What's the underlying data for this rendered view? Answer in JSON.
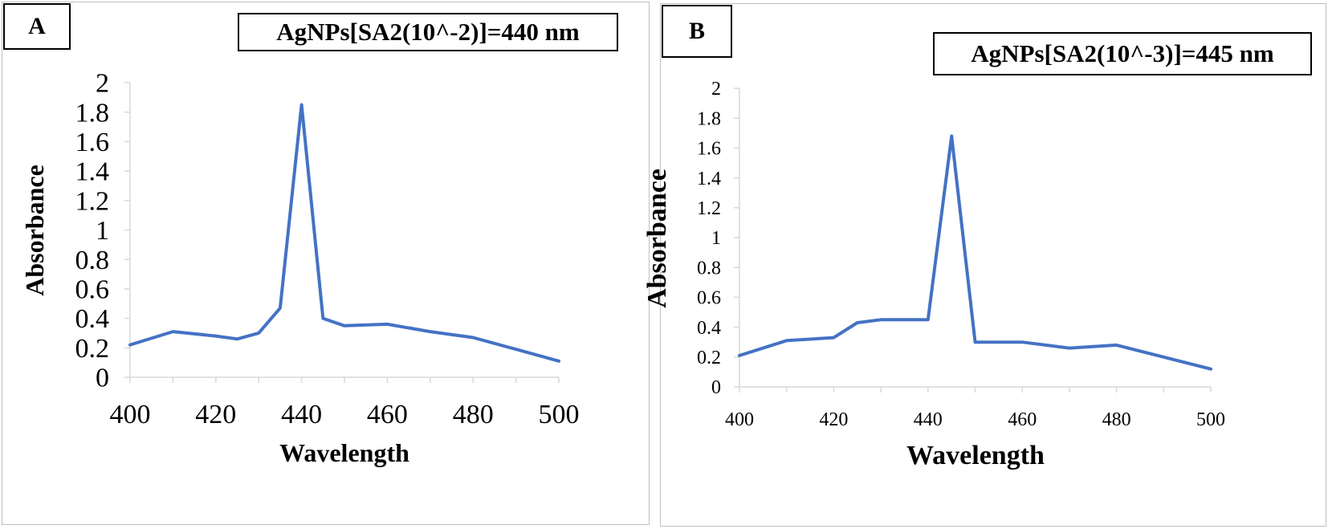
{
  "panels": [
    {
      "tag": "A",
      "title_box": "AgNPs[SA2(10^-2)]=440 nm",
      "chart_data": {
        "type": "line",
        "title": "",
        "xlabel": "Wavelength",
        "ylabel": "Absorbance",
        "xlim": [
          400,
          500
        ],
        "ylim": [
          0,
          2
        ],
        "x_ticks": [
          400,
          420,
          440,
          460,
          480,
          500
        ],
        "y_ticks": [
          0,
          0.2,
          0.4,
          0.6,
          0.8,
          1,
          1.2,
          1.4,
          1.6,
          1.8,
          2
        ],
        "x_tick_labels": [
          "400",
          "420",
          "440",
          "460",
          "480",
          "500"
        ],
        "y_tick_labels": [
          "0",
          "0.2",
          "0.4",
          "0.6",
          "0.8",
          "1",
          "1.2",
          "1.4",
          "1.6",
          "1.8",
          "2"
        ],
        "grid": false,
        "legend": "none",
        "line_color": "#4472c4",
        "series": [
          {
            "x": [
              400,
              410,
              420,
              425,
              430,
              435,
              440,
              445,
              450,
              460,
              470,
              480,
              490,
              500
            ],
            "values": [
              0.22,
              0.31,
              0.28,
              0.26,
              0.3,
              0.47,
              1.85,
              0.4,
              0.35,
              0.36,
              0.31,
              0.27,
              0.19,
              0.11
            ]
          }
        ]
      }
    },
    {
      "tag": "B",
      "title_box": "AgNPs[SA2(10^-3)]=445 nm",
      "chart_data": {
        "type": "line",
        "title": "",
        "xlabel": "Wavelength",
        "ylabel": "Absorbance",
        "xlim": [
          400,
          500
        ],
        "ylim": [
          0,
          2
        ],
        "x_ticks": [
          400,
          420,
          440,
          460,
          480,
          500
        ],
        "y_ticks": [
          0,
          0.2,
          0.4,
          0.6,
          0.8,
          1,
          1.2,
          1.4,
          1.6,
          1.8,
          2
        ],
        "x_tick_labels": [
          "400",
          "420",
          "440",
          "460",
          "480",
          "500"
        ],
        "y_tick_labels": [
          "0",
          "0.2",
          "0.4",
          "0.6",
          "0.8",
          "1",
          "1.2",
          "1.4",
          "1.6",
          "1.8",
          "2"
        ],
        "grid": false,
        "legend": "none",
        "line_color": "#4472c4",
        "series": [
          {
            "x": [
              400,
              410,
              420,
              425,
              430,
              440,
              445,
              450,
              460,
              470,
              480,
              490,
              500
            ],
            "values": [
              0.21,
              0.31,
              0.33,
              0.43,
              0.45,
              0.45,
              1.68,
              0.3,
              0.3,
              0.26,
              0.28,
              0.2,
              0.12
            ]
          }
        ]
      }
    }
  ]
}
